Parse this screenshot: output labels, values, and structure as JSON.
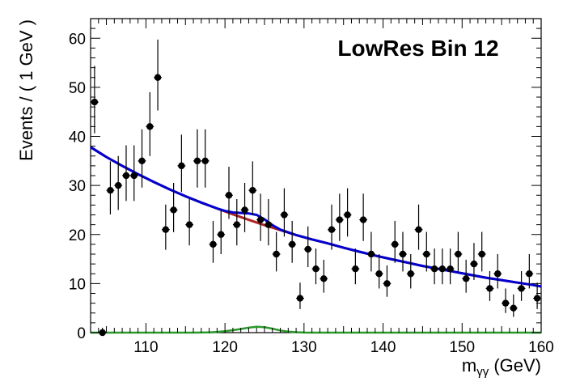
{
  "chart_data": {
    "type": "scatter",
    "title": "LowRes Bin 12",
    "xlabel": "m",
    "xlabel_sub": "γγ",
    "xlabel_unit": " (GeV)",
    "ylabel": "Events / ( 1 GeV )",
    "xlim": [
      103,
      160
    ],
    "ylim": [
      0,
      64
    ],
    "xticks": [
      110,
      120,
      130,
      140,
      150,
      160
    ],
    "yticks": [
      0,
      10,
      20,
      30,
      40,
      50,
      60
    ],
    "grid": false,
    "series": [
      {
        "kind": "data",
        "color": "#000000",
        "points": [
          [
            103.5,
            47
          ],
          [
            104.5,
            0
          ],
          [
            105.5,
            29
          ],
          [
            106.5,
            30
          ],
          [
            107.5,
            32
          ],
          [
            108.5,
            32
          ],
          [
            109.5,
            35
          ],
          [
            110.5,
            42
          ],
          [
            111.5,
            52
          ],
          [
            112.5,
            21
          ],
          [
            113.5,
            25
          ],
          [
            114.5,
            34
          ],
          [
            115.5,
            22
          ],
          [
            116.5,
            35
          ],
          [
            117.5,
            35
          ],
          [
            118.5,
            18
          ],
          [
            119.5,
            20
          ],
          [
            120.5,
            28
          ],
          [
            121.5,
            22
          ],
          [
            122.5,
            25
          ],
          [
            123.5,
            29
          ],
          [
            124.5,
            23
          ],
          [
            125.5,
            22
          ],
          [
            126.5,
            16
          ],
          [
            127.5,
            24
          ],
          [
            128.5,
            18
          ],
          [
            129.5,
            7
          ],
          [
            130.5,
            17
          ],
          [
            131.5,
            13
          ],
          [
            132.5,
            11
          ],
          [
            133.5,
            21
          ],
          [
            134.5,
            23
          ],
          [
            135.5,
            24
          ],
          [
            136.5,
            13
          ],
          [
            137.5,
            23
          ],
          [
            138.5,
            16
          ],
          [
            139.5,
            12
          ],
          [
            140.5,
            10
          ],
          [
            141.5,
            18
          ],
          [
            142.5,
            16
          ],
          [
            143.5,
            12
          ],
          [
            144.5,
            21
          ],
          [
            145.5,
            16
          ],
          [
            146.5,
            13
          ],
          [
            147.5,
            13
          ],
          [
            148.5,
            13
          ],
          [
            149.5,
            16
          ],
          [
            150.5,
            11
          ],
          [
            151.5,
            14
          ],
          [
            152.5,
            16
          ],
          [
            153.5,
            9
          ],
          [
            154.5,
            12
          ],
          [
            155.5,
            6
          ],
          [
            156.5,
            5
          ],
          [
            157.5,
            9
          ],
          [
            158.5,
            12
          ],
          [
            159.5,
            7
          ],
          [
            160.5,
            12
          ]
        ]
      },
      {
        "kind": "background-fit",
        "color": "#b22222",
        "points": [
          [
            103,
            37.8
          ],
          [
            105,
            35.8
          ],
          [
            107,
            34.0
          ],
          [
            109,
            32.3
          ],
          [
            111,
            30.7
          ],
          [
            113,
            29.2
          ],
          [
            115,
            27.8
          ],
          [
            117,
            26.5
          ],
          [
            119,
            25.3
          ],
          [
            121,
            24.1
          ],
          [
            123,
            23.0
          ],
          [
            125,
            21.9
          ],
          [
            127,
            20.9
          ],
          [
            129,
            19.9
          ],
          [
            131,
            19.0
          ],
          [
            133,
            18.2
          ],
          [
            135,
            17.3
          ],
          [
            137,
            16.5
          ],
          [
            139,
            15.7
          ],
          [
            141,
            15.0
          ],
          [
            143,
            14.3
          ],
          [
            145,
            13.6
          ],
          [
            147,
            13.0
          ],
          [
            149,
            12.4
          ],
          [
            151,
            11.8
          ],
          [
            153,
            11.2
          ],
          [
            155,
            10.7
          ],
          [
            157,
            10.2
          ],
          [
            159,
            9.7
          ],
          [
            160,
            9.4
          ]
        ]
      },
      {
        "kind": "signal-plus-background",
        "color": "#0000d0",
        "points": [
          [
            103,
            37.8
          ],
          [
            105,
            35.8
          ],
          [
            107,
            34.0
          ],
          [
            109,
            32.3
          ],
          [
            111,
            30.7
          ],
          [
            113,
            29.2
          ],
          [
            115,
            27.8
          ],
          [
            117,
            26.5
          ],
          [
            119,
            25.3
          ],
          [
            120,
            24.8
          ],
          [
            121,
            24.5
          ],
          [
            122,
            24.4
          ],
          [
            123,
            24.3
          ],
          [
            124,
            24.0
          ],
          [
            125,
            23.1
          ],
          [
            126,
            21.9
          ],
          [
            127,
            21.0
          ],
          [
            129,
            19.9
          ],
          [
            131,
            19.0
          ],
          [
            133,
            18.2
          ],
          [
            135,
            17.3
          ],
          [
            137,
            16.5
          ],
          [
            139,
            15.7
          ],
          [
            141,
            15.0
          ],
          [
            143,
            14.3
          ],
          [
            145,
            13.6
          ],
          [
            147,
            13.0
          ],
          [
            149,
            12.4
          ],
          [
            151,
            11.8
          ],
          [
            153,
            11.2
          ],
          [
            155,
            10.7
          ],
          [
            157,
            10.2
          ],
          [
            159,
            9.7
          ],
          [
            160,
            9.4
          ]
        ]
      },
      {
        "kind": "signal",
        "color": "#2a9a2a",
        "points": [
          [
            103,
            0
          ],
          [
            116,
            0
          ],
          [
            118,
            0.05
          ],
          [
            119,
            0.15
          ],
          [
            120,
            0.3
          ],
          [
            121,
            0.5
          ],
          [
            122,
            0.75
          ],
          [
            123,
            1.0
          ],
          [
            124,
            1.2
          ],
          [
            125,
            1.1
          ],
          [
            126,
            0.8
          ],
          [
            127,
            0.45
          ],
          [
            128,
            0.2
          ],
          [
            129,
            0.08
          ],
          [
            130,
            0.02
          ],
          [
            131,
            0
          ],
          [
            160,
            0
          ]
        ]
      }
    ]
  }
}
